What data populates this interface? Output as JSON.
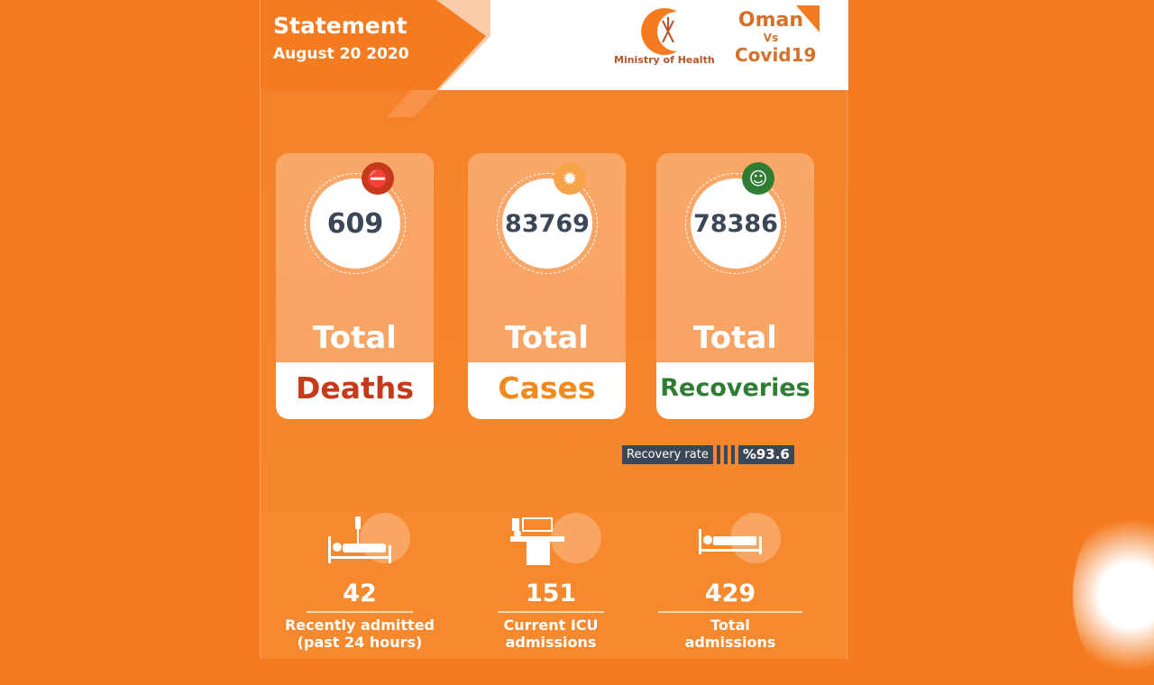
{
  "header": {
    "title": "Statement",
    "date": "August 20 2020",
    "ministry": "Ministry of Health",
    "campaign": [
      "Oman",
      "Vs",
      "Covid19"
    ]
  },
  "cards": [
    {
      "number": "609",
      "total": "Total",
      "label": "Deaths",
      "color": "#c63a1c",
      "icon": "no-entry-icon"
    },
    {
      "number": "83769",
      "total": "Total",
      "label": "Cases",
      "color": "#f08a1e",
      "icon": "virus-icon"
    },
    {
      "number": "78386",
      "total": "Total",
      "label": "Recoveries",
      "color": "#2e7d32",
      "icon": "recovered-person-icon"
    }
  ],
  "recovery": {
    "label": "Recovery rate",
    "value": "%93.6"
  },
  "stats": [
    {
      "number": "42",
      "label": "Recently admitted (past 24 hours)",
      "icon": "hospital-bed-iv-icon"
    },
    {
      "number": "151",
      "label": "Current ICU admissions",
      "icon": "icu-bed-icon"
    },
    {
      "number": "429",
      "label": "Total admissions",
      "icon": "hospital-bed-icon"
    }
  ],
  "colors": {
    "background": "#f47b20",
    "number": "#3b4656"
  }
}
